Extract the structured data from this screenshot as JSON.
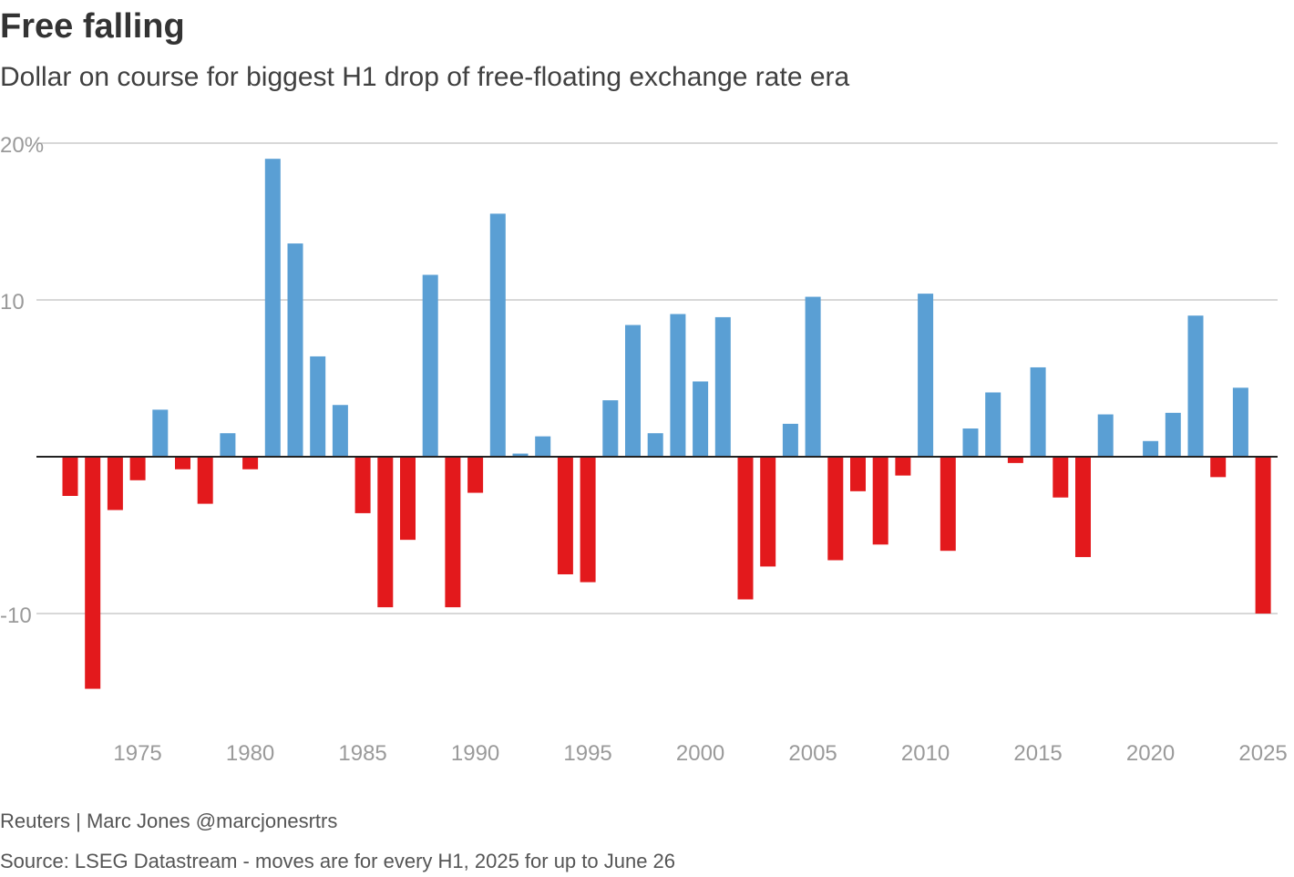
{
  "title": "Free falling",
  "subtitle": "Dollar on course for biggest H1 drop of free-floating exchange rate era",
  "credit": "Reuters | Marc Jones @marcjonesrtrs",
  "source": "Source: LSEG Datastream - moves are for every H1, 2025 for up to June 26",
  "colors": {
    "positive": "#5a9fd4",
    "negative": "#e3191c",
    "grid": "#cccccc",
    "axis": "#222222",
    "tick_label": "#9a9a9a"
  },
  "chart_data": {
    "type": "bar",
    "title": "Free falling",
    "subtitle": "Dollar on course for biggest H1 drop of free-floating exchange rate era",
    "xlabel": "",
    "ylabel": "",
    "ylim": [
      -16,
      20
    ],
    "yticks": [
      20,
      10,
      -10
    ],
    "ytick_labels": [
      "20%",
      "10",
      "-10"
    ],
    "xticks": [
      1975,
      1980,
      1985,
      1990,
      1995,
      2000,
      2005,
      2010,
      2015,
      2020,
      2025
    ],
    "grid": true,
    "categories": [
      1972,
      1973,
      1974,
      1975,
      1976,
      1977,
      1978,
      1979,
      1980,
      1981,
      1982,
      1983,
      1984,
      1985,
      1986,
      1987,
      1988,
      1989,
      1990,
      1991,
      1992,
      1993,
      1994,
      1995,
      1996,
      1997,
      1998,
      1999,
      2000,
      2001,
      2002,
      2003,
      2004,
      2005,
      2006,
      2007,
      2008,
      2009,
      2010,
      2011,
      2012,
      2013,
      2014,
      2015,
      2016,
      2017,
      2018,
      2019,
      2020,
      2021,
      2022,
      2023,
      2024,
      2025
    ],
    "values": [
      -2.5,
      -14.8,
      -3.4,
      -1.5,
      3.0,
      -0.8,
      -3.0,
      1.5,
      -0.8,
      19.0,
      13.6,
      6.4,
      3.3,
      -3.6,
      -9.6,
      -5.3,
      11.6,
      -9.6,
      -2.3,
      15.5,
      0.2,
      1.3,
      -7.5,
      -8.0,
      3.6,
      8.4,
      1.5,
      9.1,
      4.8,
      8.9,
      -9.1,
      -7.0,
      2.1,
      10.2,
      -6.6,
      -2.2,
      -5.6,
      -1.2,
      10.4,
      -6.0,
      1.8,
      4.1,
      -0.4,
      5.7,
      -2.6,
      -6.4,
      2.7,
      0.0,
      1.0,
      2.8,
      9.0,
      -1.3,
      4.4,
      -10.0
    ]
  }
}
